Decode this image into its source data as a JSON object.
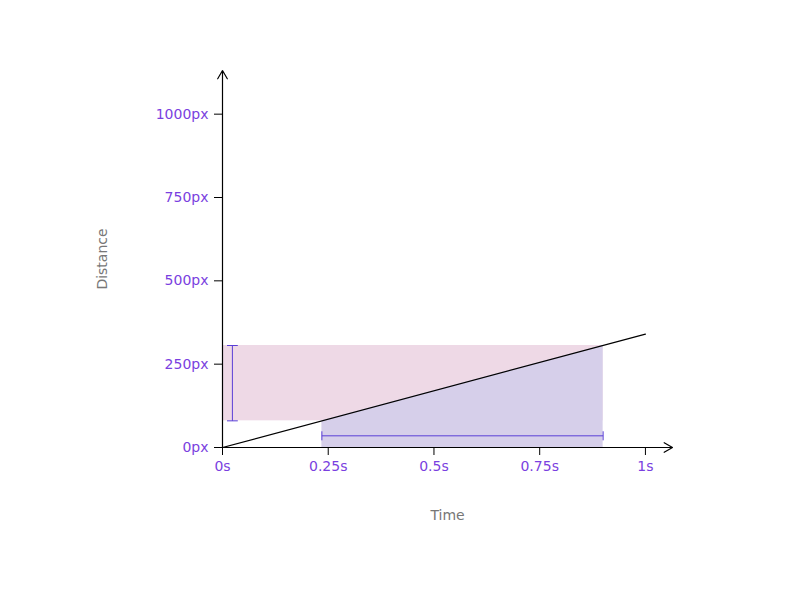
{
  "chart_data": {
    "type": "line",
    "x_label": "Time",
    "y_label": "Distance",
    "x": [
      0,
      1
    ],
    "series": [
      {
        "values": [
          0,
          340
        ],
        "color": "#000000"
      }
    ],
    "distance_span": {
      "y": [
        80,
        306
      ],
      "color": "#eed9e6"
    },
    "time_span": {
      "x": [
        0.235,
        0.9
      ],
      "color": "#d6cfea"
    },
    "xlim": [
      0,
      1.064
    ],
    "ylim": [
      0,
      1131
    ],
    "xticks": [
      {
        "value": 0,
        "label": "0s"
      },
      {
        "value": 0.25,
        "label": "0.25s"
      },
      {
        "value": 0.5,
        "label": "0.5s"
      },
      {
        "value": 0.75,
        "label": "0.75s"
      },
      {
        "value": 1,
        "label": "1s"
      }
    ],
    "yticks": [
      {
        "value": 0,
        "label": "0px"
      },
      {
        "value": 250,
        "label": "250px"
      },
      {
        "value": 500,
        "label": "500px"
      },
      {
        "value": 750,
        "label": "750px"
      },
      {
        "value": 1000,
        "label": "1000px"
      }
    ],
    "grid": false
  }
}
